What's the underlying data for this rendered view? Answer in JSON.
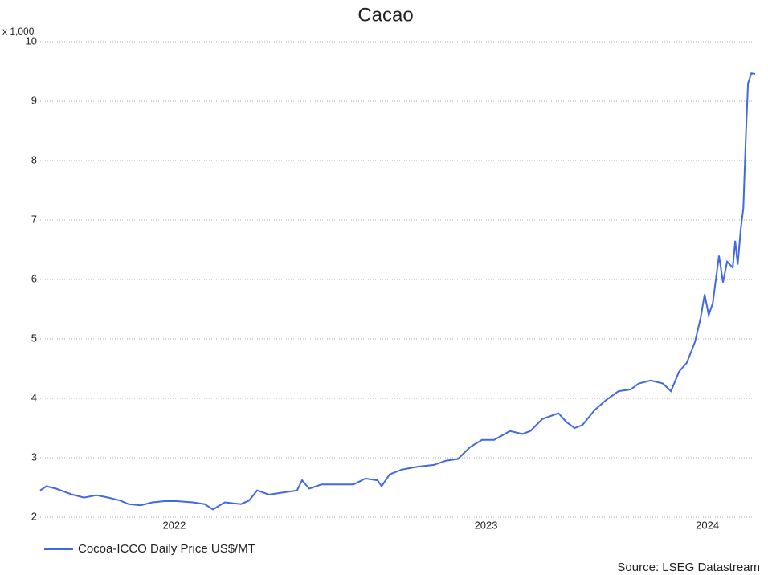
{
  "chart_data": {
    "type": "line",
    "title": "Cacao",
    "ylabel": "x 1,000",
    "source": "Source: LSEG Datastream",
    "x": [
      2022.07,
      2022.09,
      2022.121,
      2022.173,
      2022.211,
      2022.25,
      2022.289,
      2022.327,
      2022.353,
      2022.392,
      2022.43,
      2022.469,
      2022.508,
      2022.559,
      2022.598,
      2022.624,
      2022.662,
      2022.714,
      2022.74,
      2022.766,
      2022.804,
      2022.856,
      2022.894,
      2022.91,
      2022.933,
      2022.972,
      2023.023,
      2023.075,
      2023.113,
      2023.152,
      2023.165,
      2023.191,
      2023.229,
      2023.281,
      2023.333,
      2023.371,
      2023.41,
      2023.449,
      2023.487,
      2023.526,
      2023.577,
      2023.616,
      2023.642,
      2023.68,
      2023.732,
      2023.758,
      2023.784,
      2023.809,
      2023.848,
      2023.887,
      2023.925,
      2023.964,
      2023.99,
      2024.028,
      2024.067,
      2024.093,
      2024.119,
      2024.144,
      2024.17,
      2024.188,
      2024.201,
      2024.214,
      2024.227,
      2024.247,
      2024.26,
      2024.273,
      2024.291,
      2024.299,
      2024.307,
      2024.317,
      2024.325,
      2024.333,
      2024.34,
      2024.351,
      2024.363
    ],
    "series": [
      {
        "name": "Cocoa-ICCO Daily Price US$/MT",
        "color": "#4169e1",
        "values": [
          2.45,
          2.52,
          2.48,
          2.38,
          2.33,
          2.37,
          2.33,
          2.28,
          2.22,
          2.2,
          2.25,
          2.27,
          2.27,
          2.25,
          2.22,
          2.13,
          2.25,
          2.22,
          2.28,
          2.45,
          2.38,
          2.42,
          2.45,
          2.62,
          2.48,
          2.55,
          2.55,
          2.55,
          2.65,
          2.62,
          2.52,
          2.72,
          2.8,
          2.85,
          2.88,
          2.95,
          2.98,
          3.18,
          3.3,
          3.3,
          3.45,
          3.4,
          3.45,
          3.65,
          3.75,
          3.6,
          3.5,
          3.55,
          3.8,
          3.98,
          4.12,
          4.15,
          4.25,
          4.3,
          4.25,
          4.12,
          4.45,
          4.6,
          4.95,
          5.35,
          5.75,
          5.4,
          5.6,
          6.4,
          5.95,
          6.3,
          6.2,
          6.65,
          6.25,
          6.85,
          7.2,
          8.4,
          9.3,
          9.47,
          9.46
        ]
      }
    ],
    "xlim": [
      2022.07,
      2024.363
    ],
    "xticks": [
      {
        "value": 2022.5,
        "label": "2022"
      },
      {
        "value": 2023.5,
        "label": "2023"
      },
      {
        "value": 2024.21,
        "label": "2024"
      }
    ],
    "ylim": [
      2,
      10
    ],
    "yticks": [
      2,
      3,
      4,
      5,
      6,
      7,
      8,
      9,
      10
    ],
    "grid": true
  }
}
